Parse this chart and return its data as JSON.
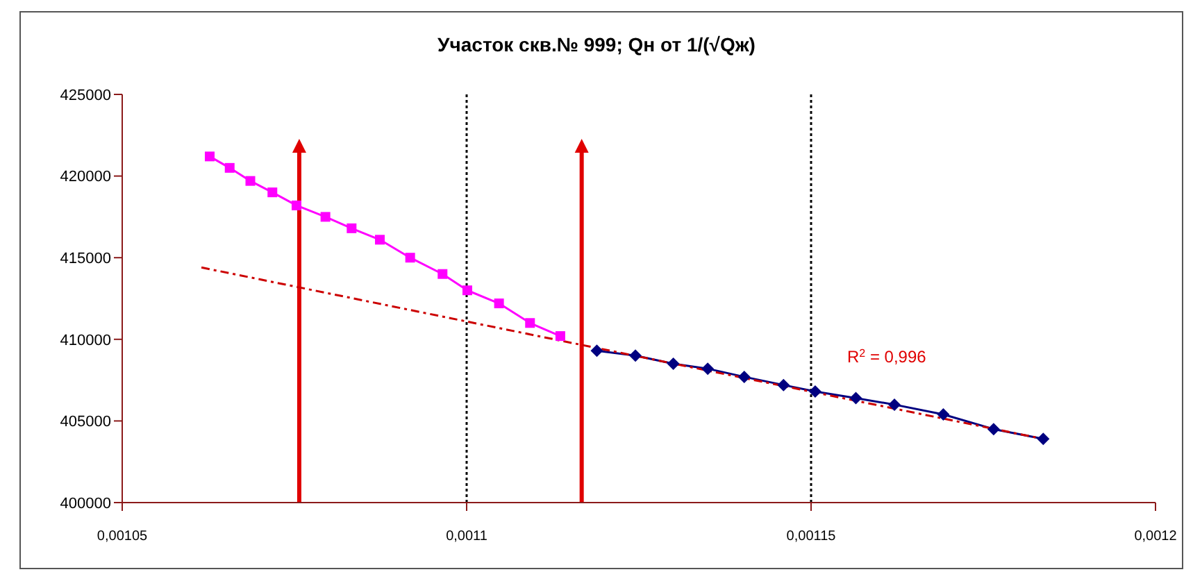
{
  "chart_data": {
    "type": "line",
    "title": "Участок скв.№ 999;  Qн от 1/(√Qж)",
    "xlim": [
      0.00105,
      0.0012
    ],
    "xticks": [
      {
        "value": 0.00105,
        "label": "0,00105"
      },
      {
        "value": 0.0011,
        "label": "0,0011"
      },
      {
        "value": 0.00115,
        "label": "0,00115"
      },
      {
        "value": 0.0012,
        "label": "0,0012"
      }
    ],
    "ylim": [
      400000,
      425000
    ],
    "yticks": [
      400000,
      405000,
      410000,
      415000,
      420000,
      425000
    ],
    "line_style": "solid",
    "series": [
      {
        "color": "#ff00ff",
        "marker": "square",
        "x": [
          0.0010627,
          0.0010656,
          0.0010686,
          0.0010718,
          0.0010753,
          0.0010795,
          0.0010833,
          0.0010874,
          0.0010918,
          0.0010965,
          0.0011001,
          0.0011047,
          0.0011092,
          0.0011136
        ],
        "values": [
          421200,
          420500,
          419700,
          419000,
          418200,
          417500,
          416800,
          416100,
          415000,
          414000,
          413000,
          412200,
          411000,
          410200
        ]
      },
      {
        "color": "#000080",
        "marker": "diamond",
        "x": [
          0.0011189,
          0.0011245,
          0.00113,
          0.001135,
          0.0011403,
          0.001146,
          0.0011506,
          0.0011565,
          0.0011621,
          0.0011692,
          0.0011765,
          0.0011837
        ],
        "values": [
          409300,
          409000,
          408500,
          408200,
          407700,
          407200,
          406800,
          406400,
          406000,
          405400,
          404500,
          403900
        ]
      },
      {
        "type": "line",
        "color": "#cc0000",
        "marker": "none",
        "line_style": "dashed",
        "x": [
          0.0010615,
          0.0011837
        ],
        "values": [
          414400,
          403900
        ]
      }
    ],
    "ref_lines": [
      {
        "axis": "x",
        "value": 0.0011,
        "color": "#000000",
        "line_style": "dotted"
      },
      {
        "axis": "x",
        "value": 0.00115,
        "color": "#000000",
        "line_style": "dotted"
      },
      {
        "axis": "x",
        "value": 0.0010757,
        "color": "#e00000",
        "line_style": "solid"
      },
      {
        "axis": "x",
        "value": 0.0011167,
        "color": "#e00000",
        "line_style": "solid"
      }
    ],
    "annotations": [
      "R$^{2}$ = 0,996"
    ]
  }
}
